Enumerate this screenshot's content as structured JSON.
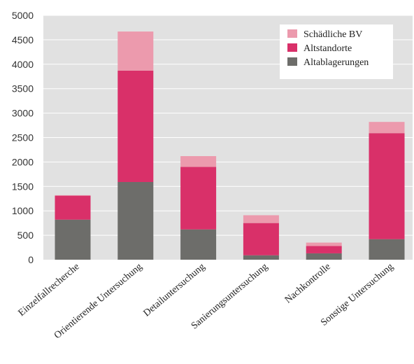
{
  "chart_data": {
    "type": "bar",
    "stacked": true,
    "categories": [
      "Einzelfallrecherche",
      "Orientierende Untersuchung",
      "Detailuntersuchung",
      "Sanierungsuntersuchung",
      "Nachkontrolle",
      "Sonstige Untersuchung"
    ],
    "series": [
      {
        "name": "Altablagerungen",
        "color": "#6d6d6a",
        "values": [
          820,
          1590,
          620,
          90,
          130,
          420
        ]
      },
      {
        "name": "Altstandorte",
        "color": "#d93069",
        "values": [
          490,
          2280,
          1280,
          660,
          150,
          2170
        ]
      },
      {
        "name": "Schädliche BV",
        "color": "#ec9aad",
        "values": [
          10,
          800,
          220,
          160,
          70,
          230
        ]
      }
    ],
    "legend_order": [
      "Schädliche BV",
      "Altstandorte",
      "Altablagerungen"
    ],
    "ylim": [
      0,
      5000
    ],
    "yticks": [
      0,
      500,
      1000,
      1500,
      2000,
      2500,
      3000,
      3500,
      4000,
      4500,
      5000
    ],
    "grid": true,
    "legend_position": "top-right",
    "title": "",
    "xlabel": "",
    "ylabel": ""
  }
}
